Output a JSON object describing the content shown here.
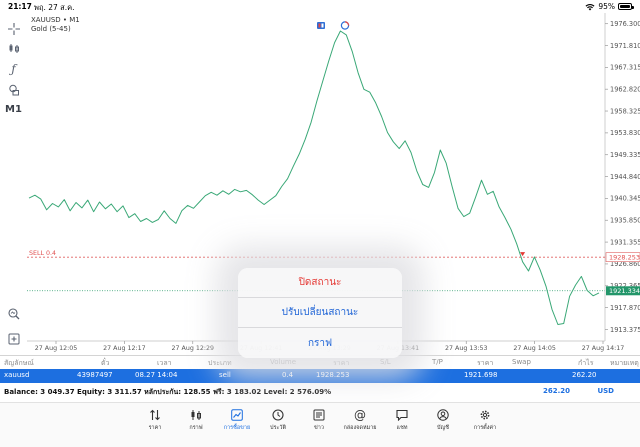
{
  "status": {
    "time": "21:17",
    "date": "พฤ. 27 ส.ค.",
    "battery": "95%",
    "battery_level": 0.95
  },
  "toolbar": {
    "timeframe": "M1"
  },
  "chart_info": {
    "symbol": "XAUUSD • M1",
    "description": "Gold (5-45)"
  },
  "chart_data": {
    "type": "line",
    "y_ticks": [
      "1976.300",
      "1971.810",
      "1967.315",
      "1962.820",
      "1958.325",
      "1953.830",
      "1949.335",
      "1944.840",
      "1940.345",
      "1935.850",
      "1931.355",
      "1926.860",
      "1922.365",
      "1917.870",
      "1913.375"
    ],
    "x_ticks": [
      "27 Aug 12:05",
      "27 Aug 12:17",
      "27 Aug 12:29",
      "27 Aug 12:41",
      "27 Aug 13:29",
      "27 Aug 13:41",
      "27 Aug 13:53",
      "27 Aug 14:05",
      "27 Aug 14:17"
    ],
    "ylim": [
      1911.0,
      1978.5
    ],
    "sell_line": {
      "label": "SELL 0.4",
      "price": 1928.253,
      "price_label": "1928.253"
    },
    "bid_line": {
      "price": 1921.334,
      "price_label": "1921.334"
    },
    "series": [
      {
        "color": "#3aa877",
        "values": [
          1940.4,
          1941.0,
          1940.2,
          1938.0,
          1939.3,
          1938.6,
          1940.1,
          1937.8,
          1939.5,
          1938.4,
          1940.0,
          1937.6,
          1939.6,
          1938.2,
          1939.2,
          1937.6,
          1938.8,
          1936.4,
          1937.2,
          1935.6,
          1936.2,
          1935.4,
          1936.0,
          1937.8,
          1936.2,
          1935.2,
          1937.8,
          1938.9,
          1938.3,
          1939.6,
          1940.9,
          1941.6,
          1941.0,
          1941.9,
          1941.2,
          1942.2,
          1941.7,
          1942.0,
          1941.1,
          1940.0,
          1939.1,
          1940.0,
          1940.9,
          1942.8,
          1944.4,
          1947.0,
          1949.5,
          1952.5,
          1956.0,
          1960.4,
          1964.5,
          1968.6,
          1972.4,
          1974.8,
          1974.0,
          1970.6,
          1966.2,
          1962.8,
          1962.2,
          1960.0,
          1957.2,
          1953.9,
          1952.0,
          1950.6,
          1952.2,
          1949.8,
          1946.0,
          1943.2,
          1942.6,
          1945.7,
          1950.3,
          1947.6,
          1942.8,
          1938.3,
          1936.6,
          1937.3,
          1940.6,
          1944.1,
          1941.2,
          1941.8,
          1938.6,
          1936.4,
          1934.0,
          1931.0,
          1927.3,
          1925.4,
          1928.3,
          1925.6,
          1922.2,
          1917.5,
          1914.4,
          1914.6,
          1920.2,
          1922.5,
          1924.3,
          1921.4,
          1920.3,
          1920.9
        ]
      }
    ]
  },
  "positions": {
    "headers": {
      "symbol": "สัญลักษณ์",
      "ticket": "ตั๋ว",
      "time": "เวลา",
      "type": "ประเภท",
      "volume": "Volume",
      "price": "ราคา",
      "sl": "S/L",
      "tp": "T/P",
      "cur_price": "ราคา",
      "swap": "Swap",
      "profit": "กำไร",
      "comment": "หมายเหตุ"
    },
    "row": {
      "symbol": "xauusd",
      "ticket": "43987497",
      "time": "08.27 14:04",
      "type": "sell",
      "volume": "0.4",
      "price": "1928.253",
      "cur_price": "1921.698",
      "profit": "262.20"
    }
  },
  "balance": {
    "text": "Balance: 3 049.37 Equity: 3 311.57 หลักประกัน: 128.55 ฟรี: 3 183.02 Level: 2 576.09%",
    "profit": "262.20",
    "currency": "USD"
  },
  "action_sheet": {
    "close": "ปิดสถานะ",
    "modify": "ปรับเปลี่ยนสถานะ",
    "chart": "กราฟ"
  },
  "tabs": [
    {
      "label": "ราคา",
      "icon": "quotes-icon"
    },
    {
      "label": "กราฟ",
      "icon": "chart-icon"
    },
    {
      "label": "การซื้อขาย",
      "icon": "trade-icon"
    },
    {
      "label": "ประวัติ",
      "icon": "history-icon"
    },
    {
      "label": "ข่าว",
      "icon": "news-icon"
    },
    {
      "label": "กล่องจดหมาย",
      "icon": "mailbox-icon"
    },
    {
      "label": "แชท",
      "icon": "chat-icon"
    },
    {
      "label": "บัญชี",
      "icon": "account-icon"
    },
    {
      "label": "การตั้งค่า",
      "icon": "settings-icon"
    }
  ]
}
